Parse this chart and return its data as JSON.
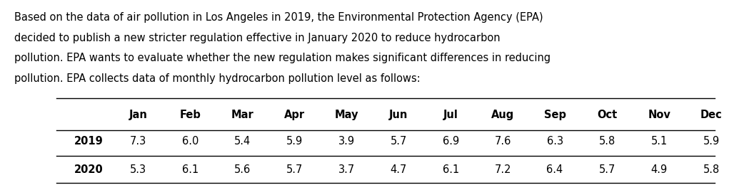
{
  "paragraph_lines": [
    "Based on the data of air pollution in Los Angeles in 2019, the Environmental Protection Agency (EPA)",
    "decided to publish a new stricter regulation effective in January 2020 to reduce hydrocarbon",
    "pollution. EPA wants to evaluate whether the new regulation makes significant differences in reducing",
    "pollution. EPA collects data of monthly hydrocarbon pollution level as follows:"
  ],
  "months": [
    "Jan",
    "Feb",
    "Mar",
    "Apr",
    "May",
    "Jun",
    "Jul",
    "Aug",
    "Sep",
    "Oct",
    "Nov",
    "Dec"
  ],
  "row_labels": [
    "2019",
    "2020"
  ],
  "values_2019": [
    "7.3",
    "6.0",
    "5.4",
    "5.9",
    "3.9",
    "5.7",
    "6.9",
    "7.6",
    "6.3",
    "5.8",
    "5.1",
    "5.9"
  ],
  "values_2020": [
    "5.3",
    "6.1",
    "5.6",
    "5.7",
    "3.7",
    "4.7",
    "6.1",
    "7.2",
    "6.4",
    "5.7",
    "4.9",
    "5.8"
  ],
  "bg_color": "#ffffff",
  "text_color": "#000000",
  "font_size": 10.5,
  "table_font_size": 10.5,
  "line_color": "#000000",
  "line_width": 1.0
}
